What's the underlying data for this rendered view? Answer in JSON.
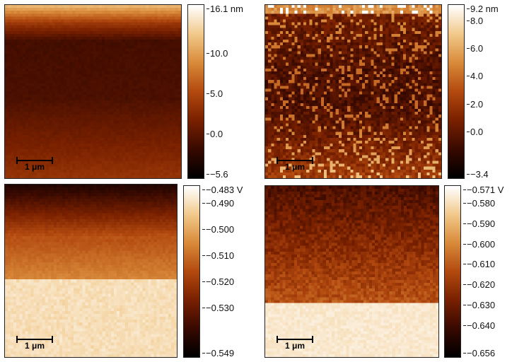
{
  "panels": [
    {
      "scalebar": "1 μm",
      "unit": "nm",
      "ticks": [
        "16.1 nm",
        "10.0",
        "5.0",
        "0.0",
        "−5.6"
      ],
      "tick_values": [
        16.1,
        10.0,
        5.0,
        0.0,
        -5.6
      ],
      "range": [
        -5.6,
        16.1
      ]
    },
    {
      "scalebar": "1 μm",
      "unit": "nm",
      "ticks": [
        "9.2 nm",
        "8.0",
        "6.0",
        "4.0",
        "2.0",
        "0.0",
        "−3.4"
      ],
      "tick_values": [
        9.2,
        8.0,
        6.0,
        4.0,
        2.0,
        0.0,
        -3.4
      ],
      "range": [
        -3.4,
        9.2
      ]
    },
    {
      "scalebar": "1 μm",
      "unit": "V",
      "ticks": [
        "−0.483 V",
        "−0.490",
        "−0.500",
        "−0.510",
        "−0.520",
        "−0.530",
        "−0.549"
      ],
      "tick_values": [
        -0.483,
        -0.49,
        -0.5,
        -0.51,
        -0.52,
        -0.53,
        -0.549
      ],
      "range": [
        -0.549,
        -0.483
      ]
    },
    {
      "scalebar": "1 μm",
      "unit": "V",
      "ticks": [
        "−0.571 V",
        "−0.580",
        "−0.590",
        "−0.600",
        "−0.610",
        "−0.620",
        "−0.630",
        "−0.640",
        "−0.656"
      ],
      "tick_values": [
        -0.571,
        -0.58,
        -0.59,
        -0.6,
        -0.61,
        -0.62,
        -0.63,
        -0.64,
        -0.656
      ],
      "range": [
        -0.656,
        -0.571
      ]
    }
  ],
  "colormap": [
    "#000000",
    "#3a0a00",
    "#7a2100",
    "#b34a10",
    "#d98a3a",
    "#f2c98a",
    "#ffffff"
  ]
}
